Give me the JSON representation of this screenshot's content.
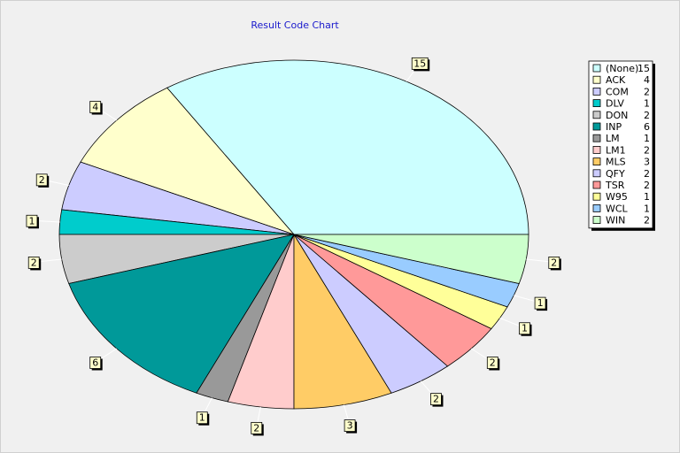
{
  "chart_data": {
    "type": "pie",
    "title": "Result Code Chart",
    "categories": [
      "(None)",
      "ACK",
      "COM",
      "DLV",
      "DON",
      "INP",
      "LM",
      "LM1",
      "MLS",
      "QFY",
      "TSR",
      "W95",
      "WCL",
      "WIN"
    ],
    "values": [
      15,
      4,
      2,
      1,
      2,
      6,
      1,
      2,
      3,
      2,
      2,
      1,
      1,
      2
    ],
    "colors": [
      "#ccffff",
      "#ffffcc",
      "#ccccff",
      "#00cccc",
      "#cccccc",
      "#009999",
      "#999999",
      "#ffcccc",
      "#ffcc66",
      "#ccccff",
      "#ff9999",
      "#ffff99",
      "#99ccff",
      "#ccffcc"
    ],
    "legend": "right"
  }
}
